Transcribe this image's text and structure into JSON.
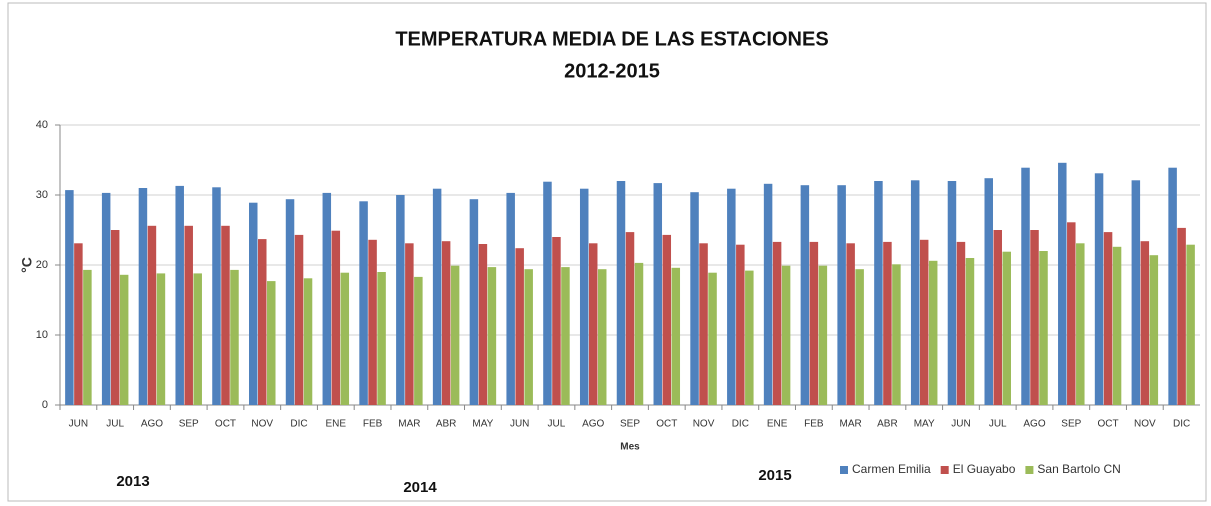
{
  "chart_data": {
    "type": "bar",
    "title": "TEMPERATURA MEDIA DE LAS ESTACIONES",
    "subtitle": "2012-2015",
    "y_label": "°C",
    "x_label": "Mes",
    "annotations": [
      "2013",
      "2014",
      "2015"
    ],
    "categories": [
      "JUN",
      "JUL",
      "AGO",
      "SEP",
      "OCT",
      "NOV",
      "DIC",
      "ENE",
      "FEB",
      "MAR",
      "ABR",
      "MAY",
      "JUN",
      "JUL",
      "AGO",
      "SEP",
      "OCT",
      "NOV",
      "DIC",
      "ENE",
      "FEB",
      "MAR",
      "ABR",
      "MAY",
      "JUN",
      "JUL",
      "AGO",
      "SEP",
      "OCT",
      "NOV",
      "DIC"
    ],
    "series": [
      {
        "name": "Carmen Emilia",
        "color": "#4f81bd",
        "values": [
          30.7,
          30.3,
          31.0,
          31.3,
          31.1,
          28.9,
          29.4,
          30.3,
          29.1,
          30.0,
          30.9,
          29.4,
          30.3,
          31.9,
          30.9,
          32.0,
          31.7,
          30.4,
          30.9,
          31.6,
          31.4,
          31.4,
          32.0,
          32.1,
          32.0,
          32.4,
          33.9,
          34.6,
          33.1,
          32.1,
          33.9
        ]
      },
      {
        "name": "El Guayabo",
        "color": "#c0504d",
        "values": [
          23.1,
          25.0,
          25.6,
          25.6,
          25.6,
          23.7,
          24.3,
          24.9,
          23.6,
          23.1,
          23.4,
          23.0,
          22.4,
          24.0,
          23.1,
          24.7,
          24.3,
          23.1,
          22.9,
          23.3,
          23.3,
          23.1,
          23.3,
          23.6,
          23.3,
          25.0,
          25.0,
          26.1,
          24.7,
          23.4,
          25.3
        ]
      },
      {
        "name": "San Bartolo CN",
        "color": "#9bbb59",
        "values": [
          19.3,
          18.6,
          18.8,
          18.8,
          19.3,
          17.7,
          18.1,
          18.9,
          19.0,
          18.3,
          19.9,
          19.7,
          19.4,
          19.7,
          19.4,
          20.3,
          19.6,
          18.9,
          19.2,
          19.9,
          19.9,
          19.4,
          20.1,
          20.6,
          21.0,
          21.9,
          22.0,
          23.1,
          22.6,
          21.4,
          22.9
        ]
      }
    ],
    "ylim": [
      0,
      40
    ],
    "yticks": [
      0,
      10,
      20,
      30,
      40
    ],
    "grid": true,
    "legend": "bottom-right"
  }
}
